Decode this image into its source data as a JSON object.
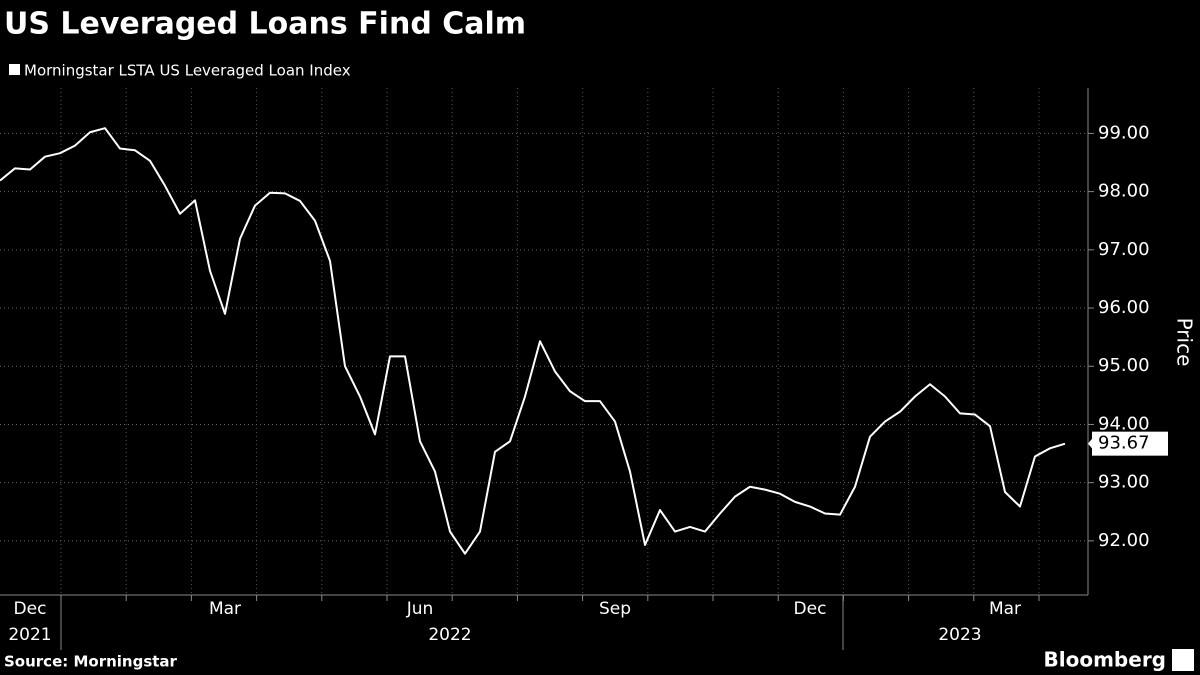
{
  "chart_data": {
    "type": "line",
    "title": "US Leveraged Loans Find Calm",
    "y_label": "Price",
    "source": "Source: Morningstar",
    "brand": "Bloomberg",
    "series": [
      {
        "name": "Morningstar LSTA US Leveraged Loan Index",
        "color": "#ffffff",
        "values": [
          98.19,
          98.4,
          98.38,
          98.6,
          98.66,
          98.79,
          99.02,
          99.09,
          98.74,
          98.71,
          98.53,
          98.1,
          97.62,
          97.85,
          96.64,
          95.9,
          97.19,
          97.76,
          97.98,
          97.97,
          97.84,
          97.5,
          96.81,
          95.0,
          94.48,
          93.83,
          95.17,
          95.17,
          93.71,
          93.19,
          92.16,
          91.78,
          92.16,
          93.53,
          93.71,
          94.48,
          95.43,
          94.91,
          94.57,
          94.4,
          94.4,
          94.05,
          93.19,
          91.93,
          92.53,
          92.16,
          92.24,
          92.16,
          92.47,
          92.76,
          92.93,
          92.88,
          92.81,
          92.67,
          92.59,
          92.47,
          92.45,
          92.93,
          93.79,
          94.05,
          94.22,
          94.48,
          94.69,
          94.48,
          94.19,
          94.17,
          93.97,
          92.84,
          92.59,
          93.45,
          93.59,
          93.67
        ],
        "value_labels": [
          null,
          null,
          null,
          null,
          null,
          null,
          null,
          null,
          null,
          null,
          null,
          null,
          null,
          null,
          null,
          null,
          null,
          null,
          null,
          null,
          null,
          null,
          null,
          null,
          null,
          null,
          null,
          null,
          null,
          null,
          null,
          null,
          null,
          null,
          null,
          null,
          null,
          null,
          null,
          null,
          null,
          null,
          null,
          null,
          null,
          null,
          null,
          null,
          null,
          null,
          null,
          null,
          null,
          null,
          null,
          null,
          null,
          null,
          null,
          null,
          null,
          null,
          null,
          null,
          null,
          null,
          null,
          null,
          null,
          null,
          null,
          "93.67"
        ]
      }
    ],
    "categories": [
      null,
      null,
      "Dec",
      null,
      null,
      null,
      null,
      null,
      null,
      null,
      null,
      null,
      null,
      null,
      null,
      "Mar",
      null,
      null,
      null,
      null,
      null,
      null,
      null,
      null,
      null,
      null,
      null,
      null,
      "Jun",
      null,
      null,
      null,
      null,
      null,
      null,
      null,
      null,
      null,
      null,
      null,
      null,
      "Sep",
      null,
      null,
      null,
      null,
      null,
      null,
      null,
      null,
      null,
      null,
      null,
      null,
      "Dec",
      null,
      null,
      null,
      null,
      null,
      null,
      null,
      null,
      null,
      null,
      null,
      null,
      "Mar",
      null,
      null,
      null,
      null
    ],
    "year_labels": [
      null,
      null,
      "2021",
      null,
      null,
      null,
      null,
      null,
      null,
      null,
      null,
      null,
      null,
      null,
      null,
      null,
      null,
      null,
      null,
      null,
      null,
      null,
      null,
      null,
      null,
      null,
      null,
      null,
      null,
      null,
      "2022",
      null,
      null,
      null,
      null,
      null,
      null,
      null,
      null,
      null,
      null,
      null,
      null,
      null,
      null,
      null,
      null,
      null,
      null,
      null,
      null,
      null,
      null,
      null,
      null,
      null,
      null,
      null,
      null,
      null,
      null,
      null,
      null,
      null,
      "2023",
      null,
      null,
      null,
      null,
      null,
      null,
      null
    ],
    "ylim": [
      91.07,
      99.78
    ],
    "yticks": [
      {
        "value": 92,
        "label": "92.00"
      },
      {
        "value": 93,
        "label": "93.00"
      },
      {
        "value": 94,
        "label": "94.00"
      },
      {
        "value": 95,
        "label": "95.00"
      },
      {
        "value": 96,
        "label": "96.00"
      },
      {
        "value": 97,
        "label": "97.00"
      },
      {
        "value": 98,
        "label": "98.00"
      },
      {
        "value": 99,
        "label": "99.00"
      }
    ],
    "grid": true
  }
}
